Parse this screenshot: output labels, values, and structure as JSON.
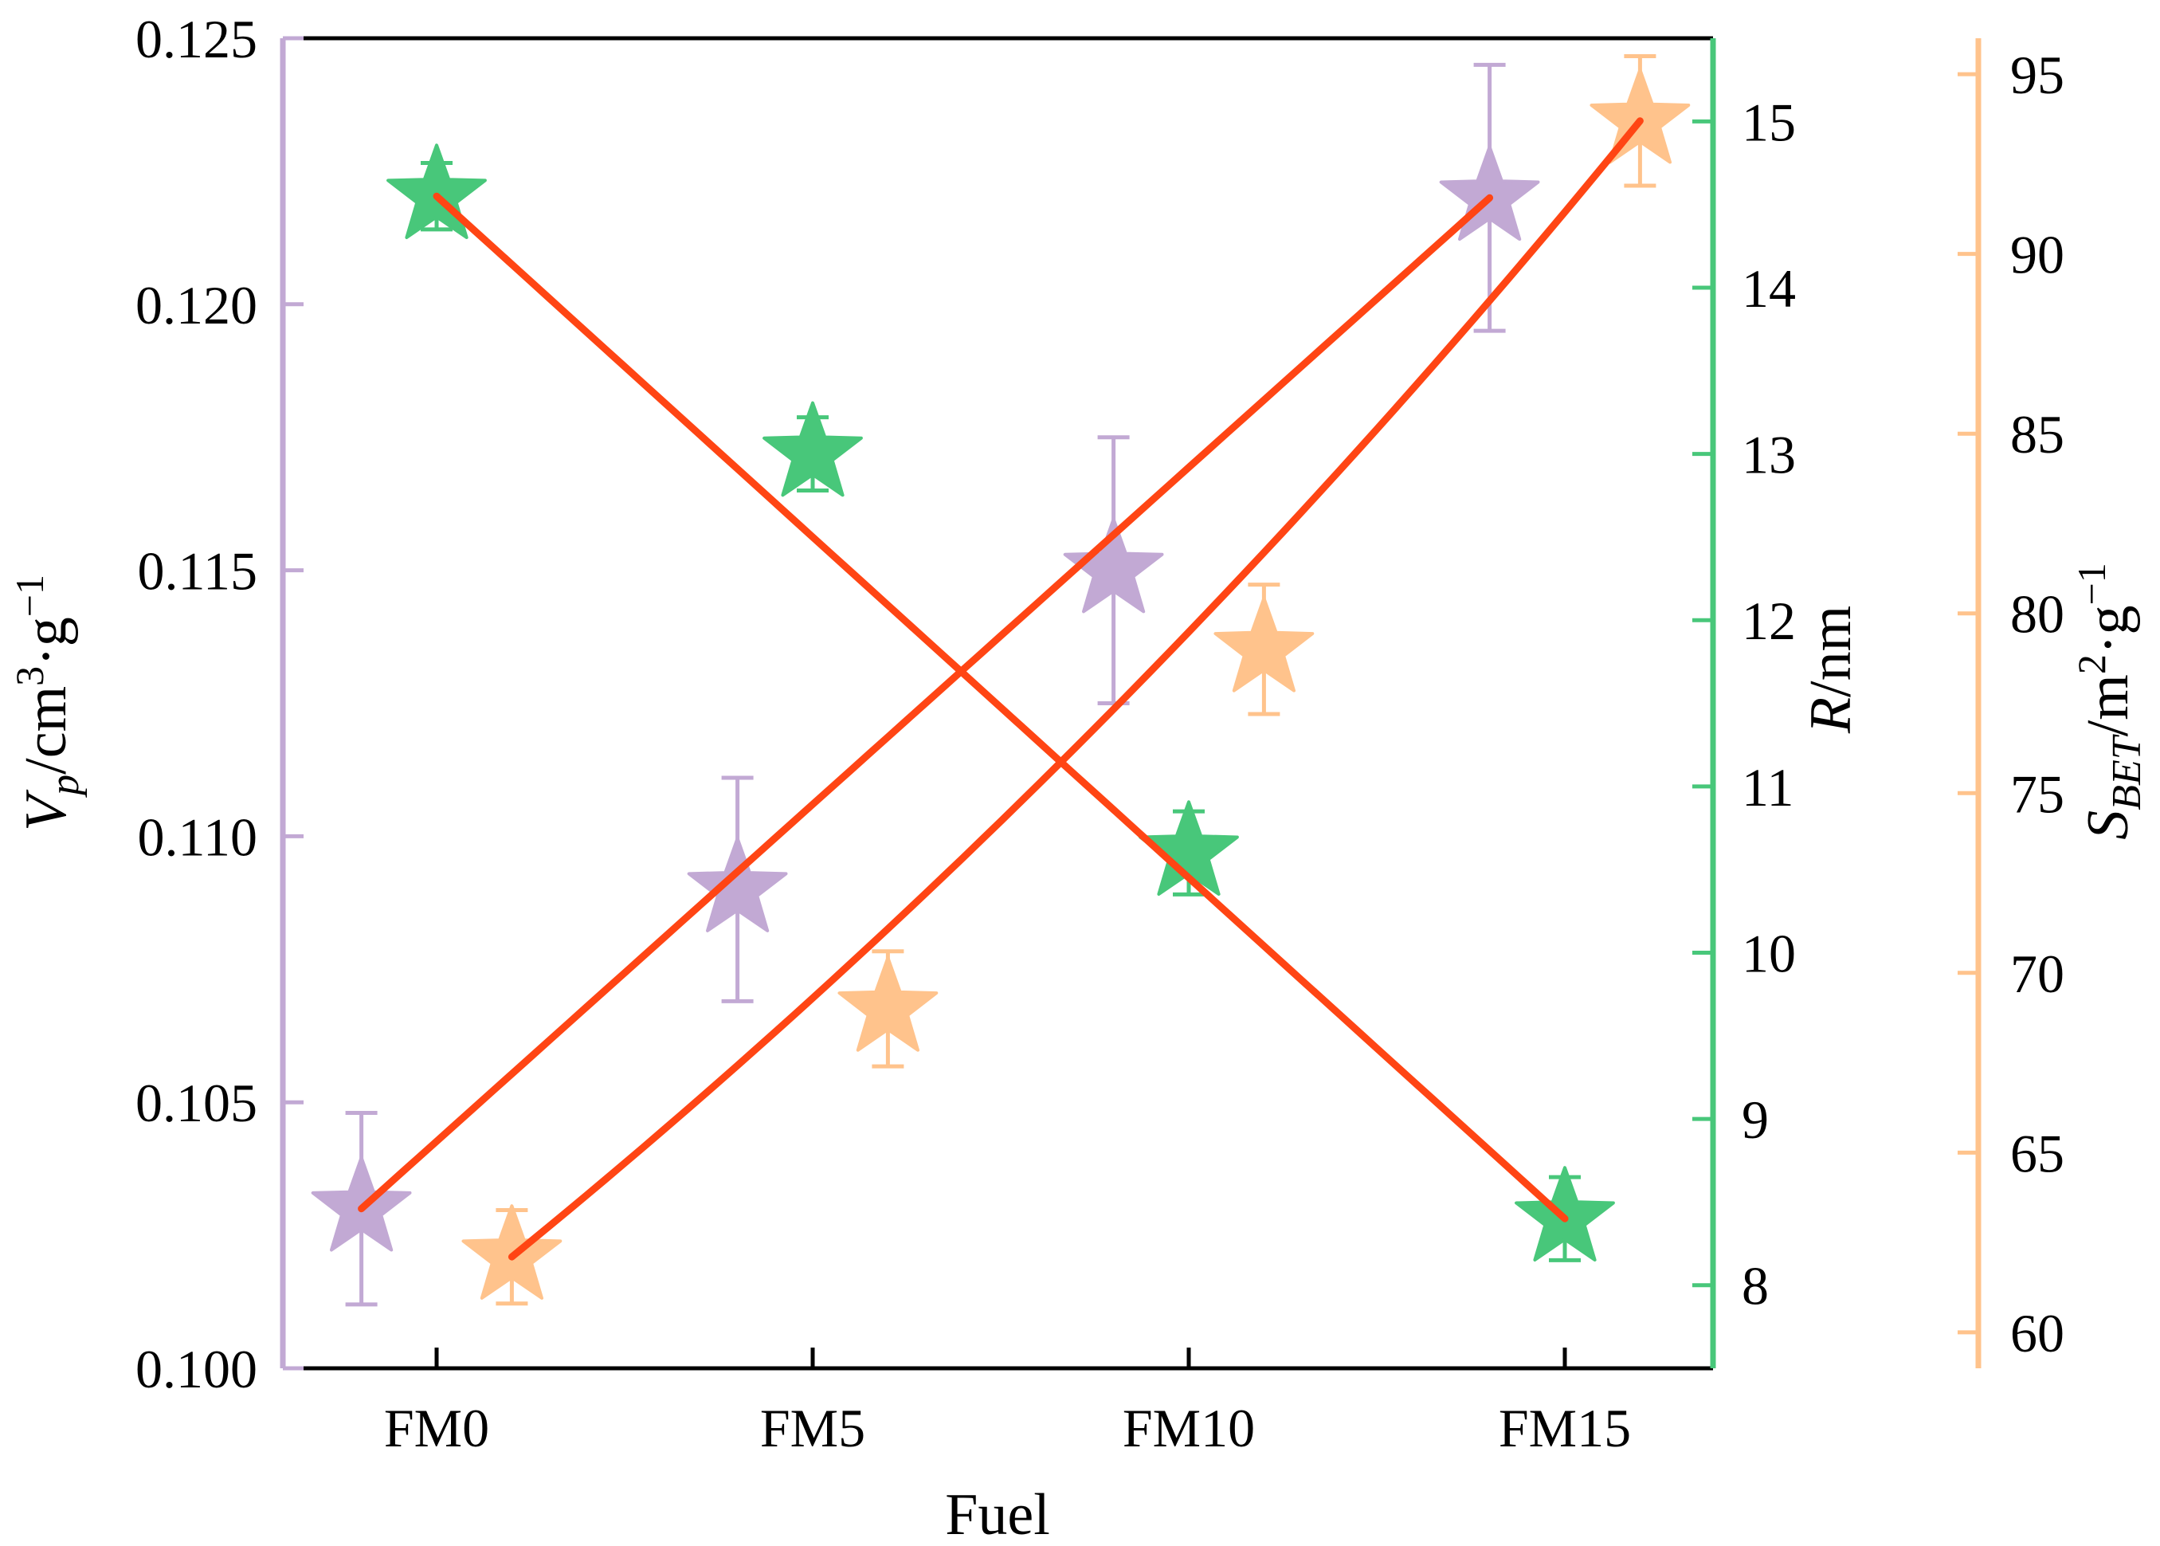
{
  "chart_data": {
    "type": "scatter",
    "xlabel": "Fuel",
    "categories": [
      "FM0",
      "FM5",
      "FM10",
      "FM15"
    ],
    "colors": {
      "vp": "#c2a9d4",
      "r": "#48c77a",
      "sbet": "#ffc38c",
      "fit": "#ff4514",
      "frame": "#000000"
    },
    "axes": {
      "vp": {
        "side": "left",
        "label_main": "V",
        "label_sub": "p",
        "label_unit": "/cm",
        "label_sup1": "3",
        "label_mid": "·g",
        "label_sup2": "−1",
        "ylim": [
          0.1,
          0.125
        ],
        "ticks": [
          "0.100",
          "0.105",
          "0.110",
          "0.115",
          "0.120",
          "0.125"
        ]
      },
      "r": {
        "side": "right",
        "label_main": "R",
        "label_unit": "/nm",
        "ylim": [
          7.5,
          15.5
        ],
        "ticks": [
          "8",
          "9",
          "10",
          "11",
          "12",
          "13",
          "14",
          "15"
        ]
      },
      "sbet": {
        "side": "right-outer",
        "label_main": "S",
        "label_sub": "BET",
        "label_unit": "/m",
        "label_sup1": "2",
        "label_mid": "·g",
        "label_sup2": "−1",
        "ylim": [
          59,
          96
        ],
        "ticks": [
          "60",
          "65",
          "70",
          "75",
          "80",
          "85",
          "90",
          "95"
        ]
      }
    },
    "series": [
      {
        "name": "Vp",
        "axis": "vp",
        "x_offset": -0.2,
        "values": [
          0.103,
          0.109,
          0.115,
          0.122
        ],
        "errors": [
          0.0018,
          0.0021,
          0.0025,
          0.0025
        ],
        "fit": "linear"
      },
      {
        "name": "R",
        "axis": "r",
        "x_offset": 0.0,
        "values": [
          14.55,
          13.0,
          10.6,
          8.4
        ],
        "errors": [
          0.2,
          0.22,
          0.25,
          0.25
        ],
        "fit": "linear"
      },
      {
        "name": "SBET",
        "axis": "sbet",
        "x_offset": 0.2,
        "values": [
          62.1,
          69.0,
          79.0,
          93.7
        ],
        "errors": [
          1.3,
          1.6,
          1.8,
          1.8
        ],
        "fit": "exponential"
      }
    ]
  }
}
